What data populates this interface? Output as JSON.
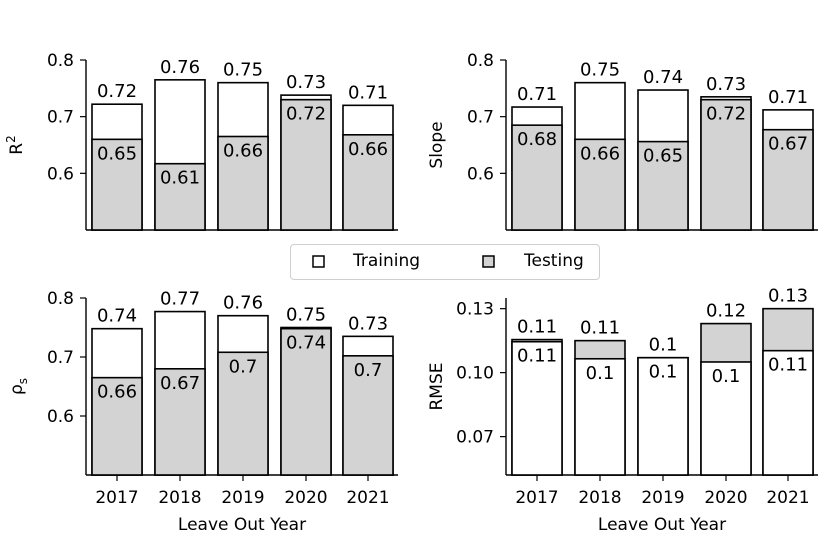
{
  "legend": {
    "training_label": "Training",
    "testing_label": "Testing"
  },
  "colors": {
    "training": "#ffffff",
    "testing": "#d3d3d3",
    "edge": "#000000"
  },
  "chart_data": [
    {
      "type": "bar",
      "categories": [
        "2017",
        "2018",
        "2019",
        "2020",
        "2021"
      ],
      "ylabel": "R²",
      "xlabel": "",
      "ylim": [
        0.5,
        0.8
      ],
      "yticks": [
        "0.6",
        "0.7",
        "0.8"
      ],
      "show_xticks": false,
      "series": [
        {
          "name": "Training",
          "values": [
            0.72,
            0.76,
            0.75,
            0.73,
            0.71
          ],
          "bar_tops": [
            0.722,
            0.765,
            0.76,
            0.738,
            0.72
          ]
        },
        {
          "name": "Testing",
          "values": [
            0.65,
            0.61,
            0.66,
            0.72,
            0.66
          ],
          "bar_tops": [
            0.66,
            0.617,
            0.665,
            0.73,
            0.668
          ]
        }
      ]
    },
    {
      "type": "bar",
      "categories": [
        "2017",
        "2018",
        "2019",
        "2020",
        "2021"
      ],
      "ylabel": "Slope",
      "xlabel": "",
      "ylim": [
        0.5,
        0.8
      ],
      "yticks": [
        "0.6",
        "0.7",
        "0.8"
      ],
      "show_xticks": false,
      "series": [
        {
          "name": "Training",
          "values": [
            0.71,
            0.75,
            0.74,
            0.73,
            0.71
          ],
          "bar_tops": [
            0.717,
            0.76,
            0.747,
            0.735,
            0.712
          ]
        },
        {
          "name": "Testing",
          "values": [
            0.68,
            0.66,
            0.65,
            0.72,
            0.67
          ],
          "bar_tops": [
            0.685,
            0.66,
            0.656,
            0.73,
            0.677
          ]
        }
      ]
    },
    {
      "type": "bar",
      "categories": [
        "2017",
        "2018",
        "2019",
        "2020",
        "2021"
      ],
      "ylabel": "ρs",
      "xlabel": "Leave Out Year",
      "ylim": [
        0.5,
        0.8
      ],
      "yticks": [
        "0.6",
        "0.7",
        "0.8"
      ],
      "show_xticks": true,
      "series": [
        {
          "name": "Training",
          "values": [
            0.74,
            0.77,
            0.76,
            0.75,
            0.73
          ],
          "bar_tops": [
            0.748,
            0.777,
            0.77,
            0.75,
            0.735
          ]
        },
        {
          "name": "Testing",
          "values": [
            0.66,
            0.67,
            0.7,
            0.74,
            0.7
          ],
          "bar_tops": [
            0.665,
            0.68,
            0.708,
            0.748,
            0.702
          ]
        }
      ]
    },
    {
      "type": "bar",
      "categories": [
        "2017",
        "2018",
        "2019",
        "2020",
        "2021"
      ],
      "ylabel": "RMSE",
      "xlabel": "Leave Out Year",
      "ylim": [
        0.052,
        0.135
      ],
      "yticks": [
        "0.07",
        "0.10",
        "0.13"
      ],
      "show_xticks": true,
      "series": [
        {
          "name": "Testing",
          "values": [
            0.11,
            0.11,
            0.1,
            0.12,
            0.13
          ],
          "bar_tops": [
            0.1155,
            0.115,
            0.107,
            0.123,
            0.13
          ]
        },
        {
          "name": "Training",
          "values": [
            0.11,
            0.1,
            0.1,
            0.1,
            0.11
          ],
          "bar_tops": [
            0.1145,
            0.1065,
            0.107,
            0.105,
            0.1103
          ]
        }
      ]
    }
  ]
}
